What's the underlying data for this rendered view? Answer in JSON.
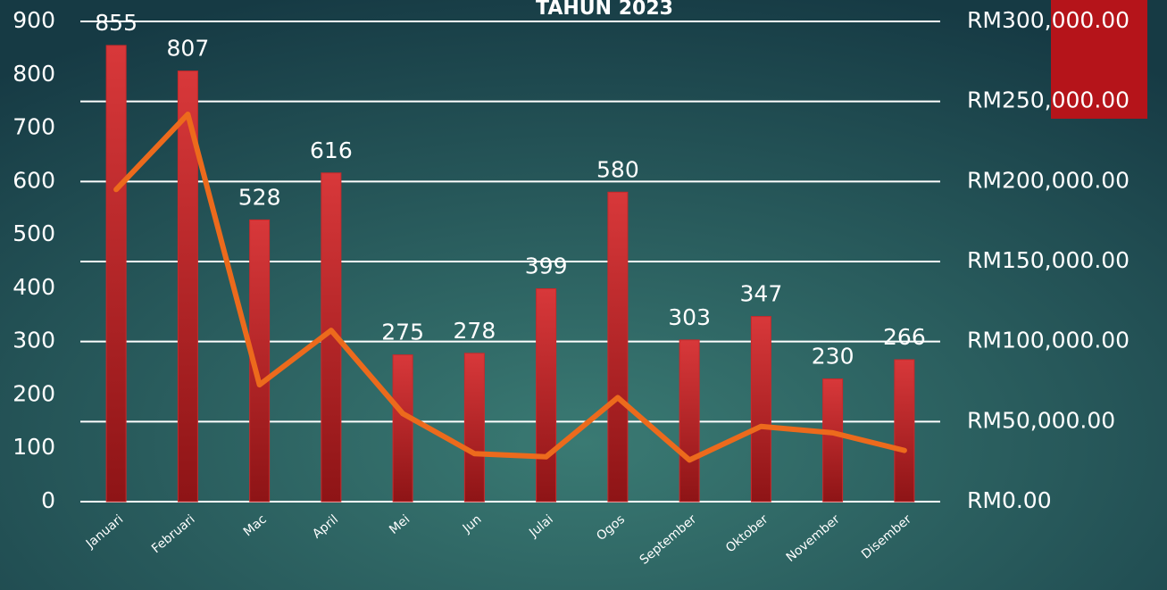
{
  "chart_data": {
    "type": "bar_line",
    "title": "TAHUN 2023",
    "categories": [
      "Januari",
      "Februari",
      "Mac",
      "April",
      "Mei",
      "Jun",
      "Julai",
      "Ogos",
      "September",
      "Oktober",
      "November",
      "Disember"
    ],
    "series": [
      {
        "type": "bar",
        "color": "#c8292b",
        "values": [
          855,
          807,
          528,
          616,
          275,
          278,
          399,
          580,
          303,
          347,
          230,
          266
        ]
      },
      {
        "type": "line",
        "axis": "y2",
        "color": "#ec6a1c",
        "values": [
          195000,
          242000,
          73000,
          107000,
          55000,
          30000,
          28000,
          65000,
          26000,
          47000,
          43000,
          32000
        ]
      }
    ],
    "ylim": [
      0,
      900
    ],
    "yticks": [
      0,
      100,
      200,
      300,
      400,
      500,
      600,
      700,
      800,
      900
    ],
    "y2lim": [
      0,
      300000
    ],
    "y2ticks": [
      {
        "value": 0,
        "label": "RM0.00"
      },
      {
        "value": 50000,
        "label": "RM50,000.00"
      },
      {
        "value": 100000,
        "label": "RM100,000.00"
      },
      {
        "value": 150000,
        "label": "RM150,000.00"
      },
      {
        "value": 200000,
        "label": "RM200,000.00"
      },
      {
        "value": 250000,
        "label": "RM250,000.00"
      },
      {
        "value": 300000,
        "label": "RM300,000.00"
      }
    ],
    "grid": true
  }
}
